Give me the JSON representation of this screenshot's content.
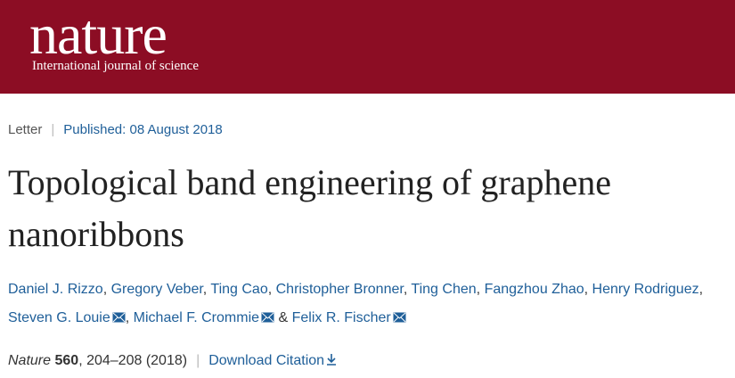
{
  "header": {
    "logo": "nature",
    "tagline": "International journal of science"
  },
  "article": {
    "type": "Letter",
    "published": "Published: 08 August 2018",
    "title": "Topological band engineering of graphene nanoribbons",
    "authors": [
      "Daniel J. Rizzo",
      "Gregory Veber",
      "Ting Cao",
      "Christopher Bronner",
      "Ting Chen",
      "Fangzhou Zhao",
      "Henry Rodriguez",
      "Steven G. Louie",
      "Michael F. Crommie",
      "Felix R. Fischer"
    ],
    "author_separator": ",",
    "last_separator": "&",
    "citation": {
      "journal": "Nature",
      "volume": "560",
      "rest": ", 204–208 (2018)"
    },
    "download": "Download Citation"
  }
}
